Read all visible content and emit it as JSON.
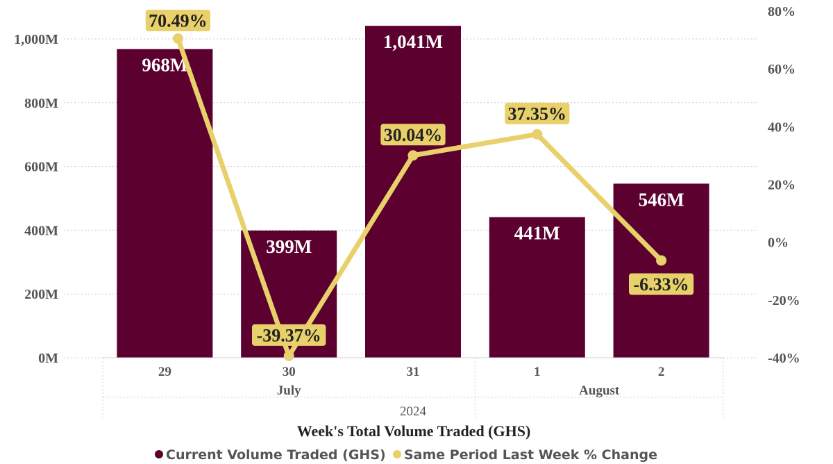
{
  "chart_data": {
    "type": "bar",
    "categories": [
      "29",
      "30",
      "31",
      "1",
      "2"
    ],
    "months": [
      {
        "label": "July",
        "span": [
          0,
          2
        ]
      },
      {
        "label": "August",
        "span": [
          3,
          4
        ]
      }
    ],
    "year": "2024",
    "series": [
      {
        "name": "Current Volume Traded (GHS)",
        "type": "bar",
        "axis": "left",
        "values": [
          968,
          399,
          1041,
          441,
          546
        ],
        "labels": [
          "968M",
          "399M",
          "1,041M",
          "441M",
          "546M"
        ],
        "color": "#5c0030"
      },
      {
        "name": "Same Period Last Week % Change",
        "type": "line",
        "axis": "right",
        "values": [
          70.49,
          -39.37,
          30.04,
          37.35,
          -6.33
        ],
        "labels": [
          "70.49%",
          "-39.37%",
          "30.04%",
          "37.35%",
          "-6.33%"
        ],
        "color": "#e8d06a"
      }
    ],
    "y_left": {
      "ylim": [
        0,
        1050
      ],
      "ticks": [
        0,
        200,
        400,
        600,
        800,
        1000
      ],
      "tick_labels": [
        "0M",
        "200M",
        "400M",
        "600M",
        "800M",
        "1,000M"
      ]
    },
    "y_right": {
      "ylim": [
        -40,
        80
      ],
      "ticks": [
        -40,
        -20,
        0,
        20,
        40,
        60,
        80
      ],
      "tick_labels": [
        "-40%",
        "-20%",
        "0%",
        "20%",
        "40%",
        "60%",
        "80%"
      ]
    },
    "xlabel": "Week's Total Volume Traded (GHS)",
    "grid": true,
    "legend_position": "bottom-center"
  }
}
